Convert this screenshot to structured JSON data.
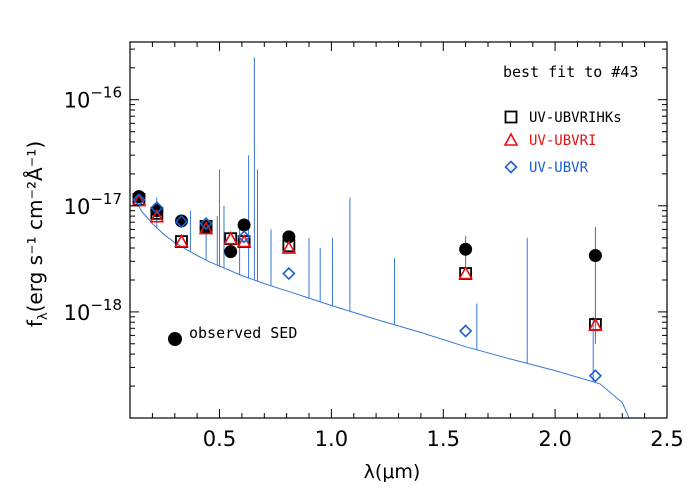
{
  "chart_data": {
    "type": "scatter",
    "xlabel": "λ(μm)",
    "ylabel": "f",
    "ylabel_sub": "λ",
    "ylabel_units": "(erg s⁻¹ cm⁻²Å⁻¹)",
    "y_scale": "log",
    "xlim": [
      0.1,
      2.5
    ],
    "ylim": [
      1e-19,
      3.5e-16
    ],
    "x_ticks": [
      {
        "value": 0.5,
        "label": "0.5"
      },
      {
        "value": 1.0,
        "label": "1.0"
      },
      {
        "value": 1.5,
        "label": "1.5"
      },
      {
        "value": 2.0,
        "label": "2.0"
      },
      {
        "value": 2.5,
        "label": "2.5"
      }
    ],
    "y_ticks": [
      {
        "value": 1e-16,
        "base": "10",
        "exp": "−16"
      },
      {
        "value": 1e-17,
        "base": "10",
        "exp": "−17"
      },
      {
        "value": 1e-18,
        "base": "10",
        "exp": "−18"
      }
    ],
    "annotation": "best fit to #43",
    "observed_label": "observed SED",
    "series": [
      {
        "name": "observed SED",
        "marker": "filled-circle",
        "color": "#000000",
        "x": [
          0.14,
          0.22,
          0.33,
          0.44,
          0.55,
          0.61,
          0.81,
          1.6,
          2.18
        ],
        "y": [
          1.22e-17,
          9e-18,
          7.2e-18,
          6.2e-18,
          3.7e-18,
          6.6e-18,
          5.1e-18,
          3.9e-18,
          3.4e-18
        ],
        "err": [
          0,
          0,
          0,
          0,
          0,
          0,
          0,
          1.3e-18,
          2.9e-18
        ]
      },
      {
        "name": "UV-UBVRIHKs",
        "marker": "open-square",
        "color": "#000000",
        "x": [
          0.14,
          0.22,
          0.33,
          0.44,
          0.55,
          0.61,
          0.81,
          1.6,
          2.18
        ],
        "y": [
          1.15e-17,
          8.5e-18,
          4.6e-18,
          6.4e-18,
          4.9e-18,
          4.6e-18,
          4.2e-18,
          2.3e-18,
          7.6e-19
        ]
      },
      {
        "name": "UV-UBVRI",
        "marker": "open-triangle",
        "color": "#e8100f",
        "x": [
          0.14,
          0.22,
          0.33,
          0.44,
          0.55,
          0.61,
          0.81,
          1.6,
          2.18
        ],
        "y": [
          1.12e-17,
          7.9e-18,
          4.6e-18,
          6.1e-18,
          4.9e-18,
          4.6e-18,
          4e-18,
          2.3e-18,
          7.5e-19
        ]
      },
      {
        "name": "UV-UBVR",
        "marker": "open-diamond",
        "color": "#1a5fd0",
        "x": [
          0.14,
          0.22,
          0.33,
          0.44,
          0.61,
          0.81,
          1.6,
          2.18
        ],
        "y": [
          1.14e-17,
          9.6e-18,
          7.1e-18,
          6.8e-18,
          5.1e-18,
          2.3e-18,
          6.6e-19,
          2.5e-19
        ]
      }
    ],
    "model_spectrum": {
      "color": "#3a78d8",
      "continuum": {
        "x": [
          0.12,
          0.15,
          0.2,
          0.25,
          0.3,
          0.35,
          0.4,
          0.45,
          0.5,
          0.6,
          0.7,
          0.8,
          0.9,
          1.0,
          1.2,
          1.4,
          1.6,
          1.8,
          2.0,
          2.2,
          2.3,
          2.34
        ],
        "y": [
          1.2e-17,
          9e-18,
          6.8e-18,
          5.4e-18,
          4.5e-18,
          3.9e-18,
          3.4e-18,
          3e-18,
          2.7e-18,
          2.2e-18,
          1.85e-18,
          1.58e-18,
          1.35e-18,
          1.15e-18,
          8.5e-19,
          6.4e-19,
          4.7e-19,
          3.6e-19,
          2.8e-19,
          2.1e-19,
          1.4e-19,
          9e-20
        ]
      },
      "emission_lines": [
        {
          "x": 0.22,
          "y": 1.2e-17
        },
        {
          "x": 0.37,
          "y": 9e-18
        },
        {
          "x": 0.44,
          "y": 7e-18
        },
        {
          "x": 0.49,
          "y": 8e-18
        },
        {
          "x": 0.5,
          "y": 2.2e-17
        },
        {
          "x": 0.52,
          "y": 1e-17
        },
        {
          "x": 0.59,
          "y": 6e-18
        },
        {
          "x": 0.63,
          "y": 3e-17
        },
        {
          "x": 0.656,
          "y": 2.5e-16
        },
        {
          "x": 0.67,
          "y": 2.2e-17
        },
        {
          "x": 0.73,
          "y": 6e-18
        },
        {
          "x": 0.9,
          "y": 5e-18
        },
        {
          "x": 0.95,
          "y": 4e-18
        },
        {
          "x": 1.005,
          "y": 5e-18
        },
        {
          "x": 1.083,
          "y": 1.2e-17
        },
        {
          "x": 1.282,
          "y": 3.2e-18
        },
        {
          "x": 1.65,
          "y": 1.2e-18
        },
        {
          "x": 1.875,
          "y": 5e-18
        },
        {
          "x": 2.17,
          "y": 9e-19
        }
      ]
    }
  }
}
